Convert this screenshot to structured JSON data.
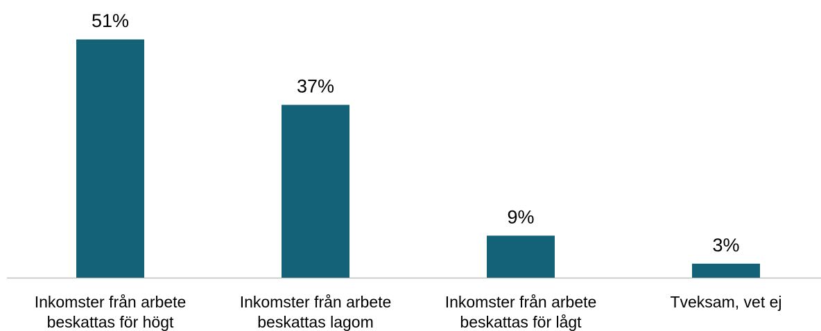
{
  "chart_data": {
    "type": "bar",
    "categories": [
      "Inkomster från arbete beskattas för högt",
      "Inkomster från arbete beskattas lagom",
      "Inkomster från arbete beskattas för lågt",
      "Tveksam, vet ej"
    ],
    "values": [
      51,
      37,
      9,
      3
    ],
    "value_labels": [
      "51%",
      "37%",
      "9%",
      "3%"
    ],
    "color": "#136278"
  }
}
